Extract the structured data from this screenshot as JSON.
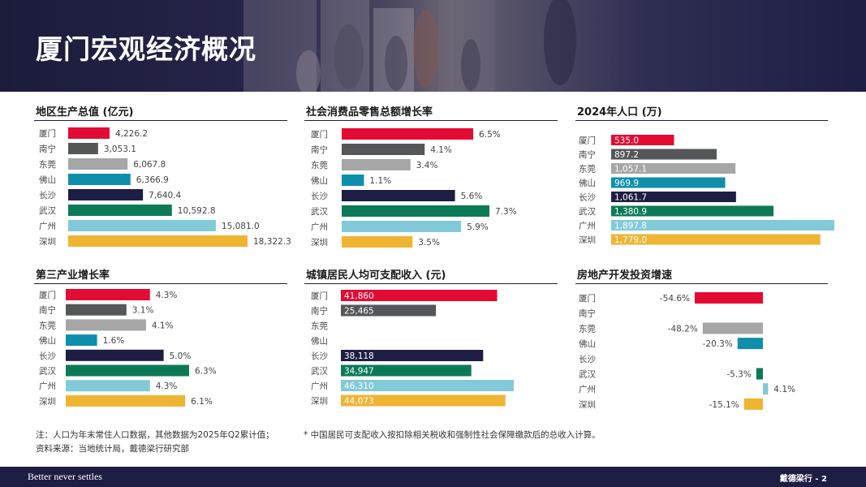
{
  "page": {
    "title": "厦门宏观经济概况"
  },
  "colors": {
    "header_bg": "#1e1d44",
    "cities": [
      "#e30b33",
      "#55565a",
      "#a6a6a6",
      "#0f8fab",
      "#1e1d44",
      "#0d7a57",
      "#82cad8",
      "#f0b433"
    ]
  },
  "chart_data": [
    {
      "id": "gdp",
      "type": "bar",
      "orientation": "horizontal",
      "title": "地区生产总值 (亿元)",
      "label_position": "outside",
      "categories": [
        "厦门",
        "南宁",
        "东莞",
        "佛山",
        "长沙",
        "武汉",
        "广州",
        "深圳"
      ],
      "values": [
        4226.2,
        3053.1,
        6067.8,
        6366.9,
        7640.4,
        10592.8,
        15081.0,
        18322.3
      ],
      "labels": [
        "4,226.2",
        "3,053.1",
        "6,067.8",
        "6,366.9",
        "7,640.4",
        "10,592.8",
        "15,081.0",
        "18,322.3"
      ]
    },
    {
      "id": "retail",
      "type": "bar",
      "orientation": "horizontal",
      "title": "社会消费品零售总额增长率",
      "label_position": "outside",
      "categories": [
        "厦门",
        "南宁",
        "东莞",
        "佛山",
        "长沙",
        "武汉",
        "广州",
        "深圳"
      ],
      "values": [
        6.5,
        4.1,
        3.4,
        1.1,
        5.6,
        7.3,
        5.9,
        3.5
      ],
      "labels": [
        "6.5%",
        "4.1%",
        "3.4%",
        "1.1%",
        "5.6%",
        "7.3%",
        "5.9%",
        "3.5%"
      ]
    },
    {
      "id": "population",
      "type": "bar",
      "orientation": "horizontal",
      "title": "2024年人口 (万)",
      "label_position": "inside",
      "categories": [
        "厦门",
        "南宁",
        "东莞",
        "佛山",
        "长沙",
        "武汉",
        "广州",
        "深圳"
      ],
      "values": [
        535.0,
        897.2,
        1057.1,
        969.9,
        1061.7,
        1380.9,
        1897.8,
        1779.0
      ],
      "labels": [
        "535.0",
        "897.2",
        "1,057.1",
        "969.9",
        "1,061.7",
        "1,380.9",
        "1,897.8",
        "1,779.0"
      ]
    },
    {
      "id": "tertiary",
      "type": "bar",
      "orientation": "horizontal",
      "title": "第三产业增长率",
      "label_position": "outside",
      "categories": [
        "厦门",
        "南宁",
        "东莞",
        "佛山",
        "长沙",
        "武汉",
        "广州",
        "深圳"
      ],
      "values": [
        4.3,
        3.1,
        4.1,
        1.6,
        5.0,
        6.3,
        4.3,
        6.1
      ],
      "labels": [
        "4.3%",
        "3.1%",
        "4.1%",
        "1.6%",
        "5.0%",
        "6.3%",
        "4.3%",
        "6.1%"
      ]
    },
    {
      "id": "income",
      "type": "bar",
      "orientation": "horizontal",
      "title": "城镇居民人均可支配收入 (元)",
      "label_position": "inside",
      "categories": [
        "厦门",
        "南宁",
        "东莞",
        "佛山",
        "长沙",
        "武汉",
        "广州",
        "深圳"
      ],
      "values": [
        41860,
        25465,
        null,
        null,
        38118,
        34947,
        46310,
        44073
      ],
      "labels": [
        "41,860",
        "25,465",
        "",
        "",
        "38,118",
        "34,947",
        "46,310",
        "44,073"
      ]
    },
    {
      "id": "realestate",
      "type": "bar",
      "orientation": "horizontal",
      "title": "房地产开发投资增速",
      "label_position": "outside",
      "categories": [
        "厦门",
        "南宁",
        "东莞",
        "佛山",
        "长沙",
        "武汉",
        "广州",
        "深圳"
      ],
      "values": [
        -54.6,
        null,
        -48.2,
        -20.3,
        null,
        -5.3,
        4.1,
        -15.1
      ],
      "labels": [
        "-54.6%",
        "",
        "-48.2%",
        "-20.3%",
        "",
        "-5.3%",
        "4.1%",
        "-15.1%"
      ]
    }
  ],
  "notes": {
    "left_line1": "注：人口为年末常住人口数据，其他数据为2025年Q2累计值；",
    "left_line2": "资料来源：当地统计局，戴德梁行研究部",
    "right": "* 中国居民可支配收入按扣除相关税收和强制性社会保障缴款后的总收入计算。"
  },
  "footer": {
    "tagline": "Better never settles",
    "page_label": "戴德梁行 - 2"
  }
}
